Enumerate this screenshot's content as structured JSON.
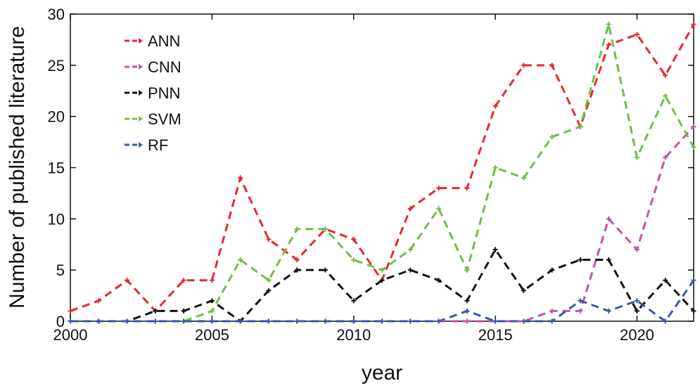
{
  "chart_data": {
    "type": "line",
    "xlabel": "year",
    "ylabel": "Number of published literature",
    "xlim": [
      2000,
      2022
    ],
    "ylim": [
      0,
      30
    ],
    "xticks": [
      2000,
      2005,
      2010,
      2015,
      2020
    ],
    "yticks": [
      0,
      5,
      10,
      15,
      20,
      25,
      30
    ],
    "grid": false,
    "legend_position": "top-left",
    "x": [
      2000,
      2001,
      2002,
      2003,
      2004,
      2005,
      2006,
      2007,
      2008,
      2009,
      2010,
      2011,
      2012,
      2013,
      2014,
      2015,
      2016,
      2017,
      2018,
      2019,
      2020,
      2021,
      2022
    ],
    "series": [
      {
        "name": "ANN",
        "color": "#e8282e",
        "values": [
          1,
          2,
          4,
          1,
          4,
          4,
          14,
          8,
          6,
          9,
          8,
          4,
          11,
          13,
          13,
          21,
          25,
          25,
          19,
          27,
          28,
          24,
          29
        ]
      },
      {
        "name": "CNN",
        "color": "#c651a8",
        "values": [
          0,
          0,
          0,
          0,
          0,
          0,
          0,
          0,
          0,
          0,
          0,
          0,
          0,
          0,
          0,
          0,
          0,
          1,
          1,
          10,
          7,
          16,
          19
        ]
      },
      {
        "name": "PNN",
        "color": "#111111",
        "values": [
          0,
          0,
          0,
          1,
          1,
          2,
          0,
          3,
          5,
          5,
          2,
          4,
          5,
          4,
          2,
          7,
          3,
          5,
          6,
          6,
          1,
          4,
          1
        ]
      },
      {
        "name": "SVM",
        "color": "#6fbe44",
        "values": [
          0,
          0,
          0,
          0,
          0,
          1,
          6,
          4,
          9,
          9,
          6,
          5,
          7,
          11,
          5,
          15,
          14,
          18,
          19,
          29,
          16,
          22,
          17
        ]
      },
      {
        "name": "RF",
        "color": "#3a56a6",
        "values": [
          0,
          0,
          0,
          0,
          0,
          0,
          0,
          0,
          0,
          0,
          0,
          0,
          0,
          0,
          1,
          0,
          0,
          0,
          2,
          1,
          2,
          0,
          4
        ]
      }
    ]
  }
}
